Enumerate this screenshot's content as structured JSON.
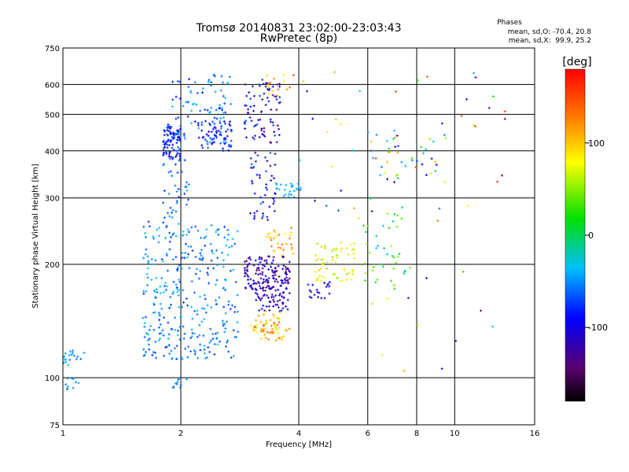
{
  "chart_data": {
    "type": "scatter",
    "title": "Tromsø 20140831 23:02:00-23:03:43",
    "subtitle": "RwPretec (8p)",
    "xlabel": "Frequency [MHz]",
    "ylabel": "Stationary phase Virtual Height [km]",
    "x_scale": "log",
    "y_scale": "log",
    "xlim": [
      1,
      16
    ],
    "ylim": [
      75,
      750
    ],
    "x_ticks": [
      1,
      2,
      4,
      6,
      8,
      10,
      16
    ],
    "x_tick_labels": [
      "1",
      "2",
      "4",
      "6",
      "8",
      "10",
      "16"
    ],
    "y_ticks": [
      75,
      100,
      200,
      300,
      400,
      500,
      600,
      750
    ],
    "y_tick_labels": [
      "75",
      "100",
      "200",
      "300",
      "400",
      "500",
      "600",
      "750"
    ],
    "grid": true,
    "colorbar": {
      "label": "[deg]",
      "range": [
        -180,
        180
      ],
      "ticks": [
        100,
        0,
        -100
      ],
      "tick_labels": [
        "100",
        "0",
        "-100"
      ],
      "colormap": "rainbow (black-purple-blue-cyan-green-yellow-orange-red)"
    },
    "stats": {
      "header": "Phases",
      "line_o": "mean, sd,O: -70.4, 20.8",
      "line_x": "mean, sd,X:  99.9, 25.2"
    },
    "clusters": [
      {
        "freq": [
          1.0,
          1.15
        ],
        "height": [
          108,
          118
        ],
        "phase": [
          -60,
          -35
        ],
        "count": 18
      },
      {
        "freq": [
          1.0,
          1.1
        ],
        "height": [
          92,
          100
        ],
        "phase": [
          -60,
          -40
        ],
        "count": 10
      },
      {
        "freq": [
          1.6,
          2.8
        ],
        "height": [
          112,
          160
        ],
        "phase": [
          -80,
          -30
        ],
        "count": 160
      },
      {
        "freq": [
          1.6,
          2.8
        ],
        "height": [
          160,
          260
        ],
        "phase": [
          -80,
          -25
        ],
        "count": 170
      },
      {
        "freq": [
          1.8,
          2.0
        ],
        "height": [
          380,
          470
        ],
        "phase": [
          -110,
          -60
        ],
        "count": 90
      },
      {
        "freq": [
          1.9,
          2.7
        ],
        "height": [
          420,
          640
        ],
        "phase": [
          -90,
          -30
        ],
        "count": 90
      },
      {
        "freq": [
          1.8,
          2.1
        ],
        "height": [
          260,
          380
        ],
        "phase": [
          -80,
          -40
        ],
        "count": 35
      },
      {
        "freq": [
          2.2,
          2.7
        ],
        "height": [
          400,
          480
        ],
        "phase": [
          -110,
          -60
        ],
        "count": 60
      },
      {
        "freq": [
          1.9,
          2.1
        ],
        "height": [
          94,
          100
        ],
        "phase": [
          -70,
          -40
        ],
        "count": 10
      },
      {
        "freq": [
          2.9,
          3.8
        ],
        "height": [
          170,
          210
        ],
        "phase": [
          -150,
          -90
        ],
        "count": 140
      },
      {
        "freq": [
          3.1,
          3.8
        ],
        "height": [
          150,
          175
        ],
        "phase": [
          -140,
          -80
        ],
        "count": 60
      },
      {
        "freq": [
          3.0,
          3.6
        ],
        "height": [
          132,
          150
        ],
        "phase": [
          60,
          150
        ],
        "count": 45
      },
      {
        "freq": [
          3.2,
          3.8
        ],
        "height": [
          125,
          135
        ],
        "phase": [
          90,
          140
        ],
        "count": 25
      },
      {
        "freq": [
          3.3,
          3.9
        ],
        "height": [
          210,
          250
        ],
        "phase": [
          70,
          140
        ],
        "count": 30
      },
      {
        "freq": [
          2.9,
          3.6
        ],
        "height": [
          420,
          620
        ],
        "phase": [
          -140,
          -60
        ],
        "count": 80
      },
      {
        "freq": [
          3.0,
          3.5
        ],
        "height": [
          260,
          400
        ],
        "phase": [
          -130,
          -60
        ],
        "count": 50
      },
      {
        "freq": [
          3.5,
          4.1
        ],
        "height": [
          300,
          330
        ],
        "phase": [
          -60,
          -20
        ],
        "count": 25
      },
      {
        "freq": [
          3.3,
          3.9
        ],
        "height": [
          560,
          640
        ],
        "phase": [
          60,
          150
        ],
        "count": 15
      },
      {
        "freq": [
          4.4,
          5.6
        ],
        "height": [
          180,
          230
        ],
        "phase": [
          50,
          100
        ],
        "count": 60
      },
      {
        "freq": [
          4.2,
          4.8
        ],
        "height": [
          160,
          180
        ],
        "phase": [
          -120,
          -80
        ],
        "count": 20
      },
      {
        "freq": [
          5.8,
          7.5
        ],
        "height": [
          170,
          300
        ],
        "phase": [
          -40,
          60
        ],
        "count": 40
      },
      {
        "freq": [
          6.0,
          9.5
        ],
        "height": [
          330,
          460
        ],
        "phase": [
          -130,
          130
        ],
        "count": 40
      },
      {
        "freq": [
          4.0,
          14.0
        ],
        "height": [
          250,
          650
        ],
        "phase": [
          -150,
          170
        ],
        "count": 45
      },
      {
        "freq": [
          6.0,
          13.0
        ],
        "height": [
          95,
          200
        ],
        "phase": [
          -150,
          170
        ],
        "count": 15
      }
    ]
  }
}
